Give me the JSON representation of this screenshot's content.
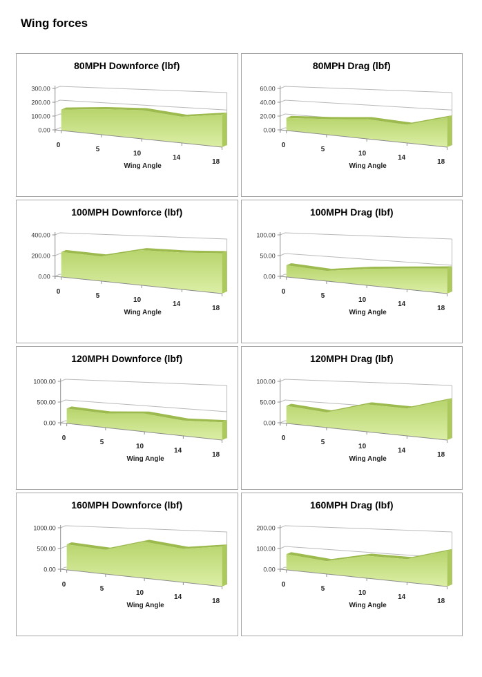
{
  "page": {
    "title": "Wing forces"
  },
  "style": {
    "area_top": "#9cba4e",
    "area_side": "#abc95c",
    "area_front_top": "#b7d46c",
    "area_front_bottom": "#dcefa6",
    "gridline": "#b9b9b9",
    "axis": "#8c8c8c",
    "panel_border": "#a3a3a3"
  },
  "chart_data": [
    {
      "type": "area",
      "title": "80MPH Downforce (lbf)",
      "xlabel": "Wing Angle",
      "ylabel": "",
      "categories": [
        0,
        5,
        10,
        14,
        18
      ],
      "values": [
        150,
        172,
        182,
        158,
        186
      ],
      "ylim": [
        0,
        300
      ],
      "yticks": [
        0,
        100,
        200,
        300
      ],
      "tick_format": "0.00",
      "grid": true,
      "legend": false,
      "style_3d": true
    },
    {
      "type": "area",
      "title": "80MPH Drag (lbf)",
      "xlabel": "Wing Angle",
      "ylabel": "",
      "categories": [
        0,
        5,
        10,
        14,
        18
      ],
      "values": [
        18,
        21,
        25,
        22,
        34
      ],
      "ylim": [
        0,
        60
      ],
      "yticks": [
        0,
        20,
        40,
        60
      ],
      "tick_format": "0.00",
      "grid": true,
      "legend": false,
      "style_3d": true
    },
    {
      "type": "area",
      "title": "100MPH Downforce (lbf)",
      "xlabel": "Wing Angle",
      "ylabel": "",
      "categories": [
        0,
        5,
        10,
        14,
        18
      ],
      "values": [
        238,
        222,
        298,
        296,
        308
      ],
      "ylim": [
        0,
        400
      ],
      "yticks": [
        0,
        200,
        400
      ],
      "tick_format": "0.00",
      "grid": true,
      "legend": false,
      "style_3d": true
    },
    {
      "type": "area",
      "title": "100MPH Drag (lbf)",
      "xlabel": "Wing Angle",
      "ylabel": "",
      "categories": [
        0,
        5,
        10,
        14,
        18
      ],
      "values": [
        28,
        23,
        35,
        42,
        48
      ],
      "ylim": [
        0,
        100
      ],
      "yticks": [
        0,
        50,
        100
      ],
      "tick_format": "0.00",
      "grid": true,
      "legend": false,
      "style_3d": true
    },
    {
      "type": "area",
      "title": "120MPH Downforce (lbf)",
      "xlabel": "Wing Angle",
      "ylabel": "",
      "categories": [
        0,
        5,
        10,
        14,
        18
      ],
      "values": [
        355,
        318,
        385,
        308,
        338
      ],
      "ylim": [
        0,
        1000
      ],
      "yticks": [
        0,
        500,
        1000
      ],
      "tick_format": "0.00",
      "grid": true,
      "legend": false,
      "style_3d": true
    },
    {
      "type": "area",
      "title": "120MPH Drag (lbf)",
      "xlabel": "Wing Angle",
      "ylabel": "",
      "categories": [
        0,
        5,
        10,
        14,
        18
      ],
      "values": [
        42,
        34,
        58,
        55,
        76
      ],
      "ylim": [
        0,
        100
      ],
      "yticks": [
        0,
        50,
        100
      ],
      "tick_format": "0.00",
      "grid": true,
      "legend": false,
      "style_3d": true
    },
    {
      "type": "area",
      "title": "160MPH Downforce (lbf)",
      "xlabel": "Wing Angle",
      "ylabel": "",
      "categories": [
        0,
        5,
        10,
        14,
        18
      ],
      "values": [
        610,
        545,
        770,
        672,
        762
      ],
      "ylim": [
        0,
        1000
      ],
      "yticks": [
        0,
        500,
        1000
      ],
      "tick_format": "0.00",
      "grid": true,
      "legend": false,
      "style_3d": true
    },
    {
      "type": "area",
      "title": "160MPH Drag (lbf)",
      "xlabel": "Wing Angle",
      "ylabel": "",
      "categories": [
        0,
        5,
        10,
        14,
        18
      ],
      "values": [
        75,
        58,
        95,
        93,
        135
      ],
      "ylim": [
        0,
        200
      ],
      "yticks": [
        0,
        100,
        200
      ],
      "tick_format": "0.00",
      "grid": true,
      "legend": false,
      "style_3d": true
    }
  ]
}
